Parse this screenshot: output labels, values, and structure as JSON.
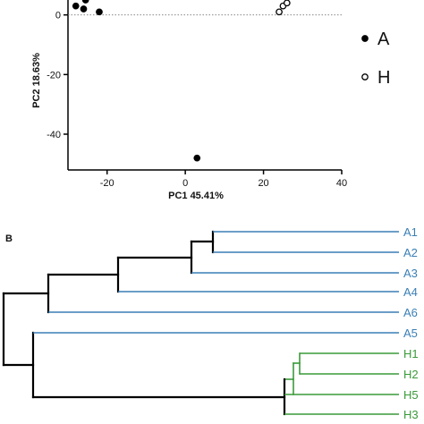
{
  "chart_data": [
    {
      "type": "scatter",
      "xlabel": "PC1 45.41%",
      "ylabel": "PC2 18.63%",
      "xlim": [
        -30,
        40
      ],
      "ylim": [
        -52,
        5
      ],
      "x_ticks": [
        "-20",
        "0",
        "20",
        "40"
      ],
      "x_tick_values": [
        -20,
        0,
        20,
        40
      ],
      "y_ticks": [
        "0",
        "-20",
        "-40"
      ],
      "y_tick_values": [
        0,
        -20,
        -40
      ],
      "zero_line": "dotted",
      "legend": [
        {
          "label": "A",
          "marker": "filled-circle"
        },
        {
          "label": "H",
          "marker": "open-circle"
        }
      ],
      "series": [
        {
          "name": "A",
          "marker": "filled",
          "points": [
            [
              -28,
              3
            ],
            [
              -26,
              2
            ],
            [
              -25.5,
              5
            ],
            [
              -22,
              1
            ],
            [
              3,
              -48
            ]
          ]
        },
        {
          "name": "H",
          "marker": "open",
          "points": [
            [
              24,
              1
            ],
            [
              25,
              3
            ],
            [
              26,
              4
            ]
          ]
        }
      ]
    },
    {
      "type": "dendrogram",
      "panel_label": "B",
      "leaves": [
        {
          "label": "A1",
          "group": "A"
        },
        {
          "label": "A2",
          "group": "A"
        },
        {
          "label": "A3",
          "group": "A"
        },
        {
          "label": "A4",
          "group": "A"
        },
        {
          "label": "A6",
          "group": "A"
        },
        {
          "label": "A5",
          "group": "A"
        },
        {
          "label": "H1",
          "group": "H"
        },
        {
          "label": "H2",
          "group": "H"
        },
        {
          "label": "H5",
          "group": "H"
        },
        {
          "label": "H3",
          "group": "H"
        }
      ],
      "colors": {
        "A": "#3a7fb5",
        "H": "#3a9a3a",
        "tree": "#000000"
      }
    }
  ]
}
